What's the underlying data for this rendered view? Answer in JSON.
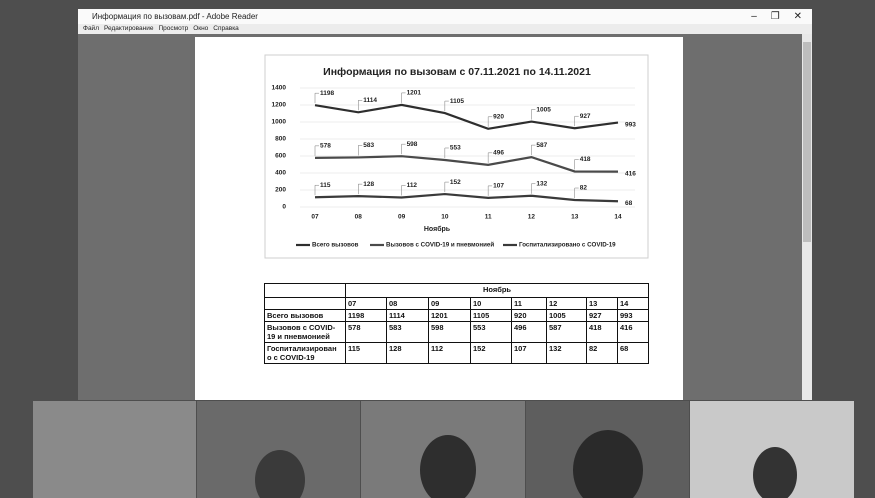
{
  "window": {
    "title": "Информация по вызовам.pdf - Adobe Reader",
    "menu": [
      "Файл",
      "Редактирование",
      "Просмотр",
      "Окно",
      "Справка"
    ]
  },
  "chart": {
    "type": "line",
    "title": "Информация по вызовам с 07.11.2021 по 14.11.2021",
    "x_label": "Ноябрь",
    "categories": [
      "07",
      "08",
      "09",
      "10",
      "11",
      "12",
      "13",
      "14"
    ],
    "series": [
      {
        "name": "Всего вызовов",
        "color": "#2e2e2e",
        "values": [
          1198,
          1114,
          1201,
          1105,
          920,
          1005,
          927,
          993
        ]
      },
      {
        "name": "Вызовов с COVID-19 и пневмонией",
        "color": "#4a4a4a",
        "values": [
          578,
          583,
          598,
          553,
          496,
          587,
          418,
          416
        ]
      },
      {
        "name": "Госпитализировано с COVID-19",
        "color": "#3a3a3a",
        "values": [
          115,
          128,
          112,
          152,
          107,
          132,
          82,
          68
        ]
      }
    ],
    "ylim": [
      0,
      1400
    ],
    "yticks": [
      0,
      200,
      400,
      600,
      800,
      1000,
      1200,
      1400
    ],
    "grid": true
  },
  "table": {
    "header": "Ноябрь",
    "columns": [
      "07",
      "08",
      "09",
      "10",
      "11",
      "12",
      "13",
      "14"
    ],
    "rows": [
      [
        "Всего вызовов",
        1198,
        1114,
        1201,
        1105,
        920,
        1005,
        927,
        993
      ],
      [
        "Вызовов с COVID-19 и пневмонией",
        578,
        583,
        598,
        553,
        496,
        587,
        418,
        416
      ],
      [
        "Госпитализирован о с COVID-19",
        115,
        128,
        112,
        152,
        107,
        132,
        82,
        68
      ]
    ]
  }
}
